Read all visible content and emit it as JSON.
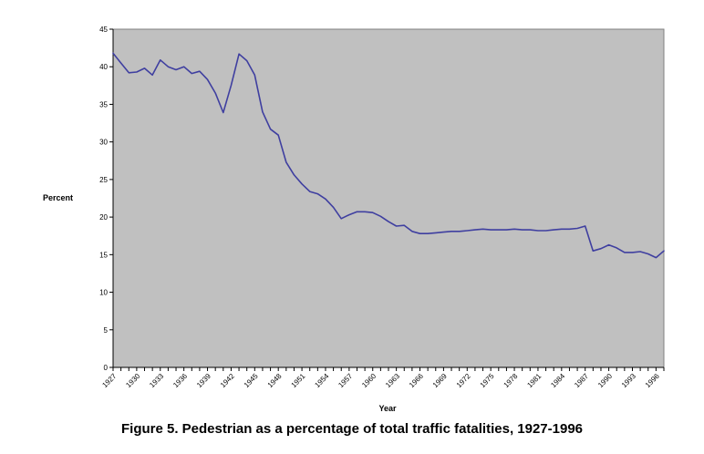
{
  "caption": "Figure 5. Pedestrian as a percentage of total traffic fatalities, 1927-1996",
  "colors": {
    "plot_background": "#c0c0c0",
    "line": "#3f3fa0",
    "axis": "#000000"
  },
  "chart_data": {
    "type": "line",
    "title": "",
    "xlabel": "Year",
    "ylabel": "Percent",
    "xlim": [
      1927,
      1997
    ],
    "ylim": [
      0,
      45
    ],
    "y_ticks": [
      0,
      5,
      10,
      15,
      20,
      25,
      30,
      35,
      40,
      45
    ],
    "x_tick_labels": [
      "1927",
      "1930",
      "1933",
      "1936",
      "1939",
      "1942",
      "1945",
      "1948",
      "1951",
      "1954",
      "1957",
      "1960",
      "1963",
      "1966",
      "1969",
      "1972",
      "1975",
      "1978",
      "1981",
      "1984",
      "1987",
      "1990",
      "1993",
      "1996"
    ],
    "grid": false,
    "legend": "none",
    "series": [
      {
        "x": [
          1927,
          1928,
          1929,
          1930,
          1931,
          1932,
          1933,
          1934,
          1935,
          1936,
          1937,
          1938,
          1939,
          1940,
          1941,
          1942,
          1943,
          1944,
          1945,
          1946,
          1947,
          1948,
          1949,
          1950,
          1951,
          1952,
          1953,
          1954,
          1955,
          1956,
          1957,
          1958,
          1959,
          1960,
          1961,
          1962,
          1963,
          1964,
          1965,
          1966,
          1967,
          1968,
          1969,
          1970,
          1971,
          1972,
          1973,
          1974,
          1975,
          1976,
          1977,
          1978,
          1979,
          1980,
          1981,
          1982,
          1983,
          1984,
          1985,
          1986,
          1987,
          1988,
          1989,
          1990,
          1991,
          1992,
          1993,
          1994,
          1995,
          1996,
          1997
        ],
        "values": [
          41.8,
          40.5,
          39.2,
          39.3,
          39.8,
          38.9,
          40.9,
          40.0,
          39.6,
          40.0,
          39.1,
          39.4,
          38.3,
          36.5,
          33.9,
          37.5,
          41.7,
          40.8,
          38.9,
          34.0,
          31.7,
          30.9,
          27.3,
          25.6,
          24.4,
          23.4,
          23.1,
          22.4,
          21.3,
          19.8,
          20.3,
          20.7,
          20.7,
          20.6,
          20.1,
          19.4,
          18.8,
          18.9,
          18.1,
          17.8,
          17.8,
          17.9,
          18.0,
          18.1,
          18.1,
          18.2,
          18.3,
          18.4,
          18.3,
          18.3,
          18.3,
          18.4,
          18.3,
          18.3,
          18.2,
          18.2,
          18.3,
          18.4,
          18.4,
          18.5,
          18.8,
          15.5,
          15.8,
          16.3,
          15.9,
          15.3,
          15.3,
          15.4,
          15.1,
          14.6,
          15.5
        ]
      }
    ]
  }
}
